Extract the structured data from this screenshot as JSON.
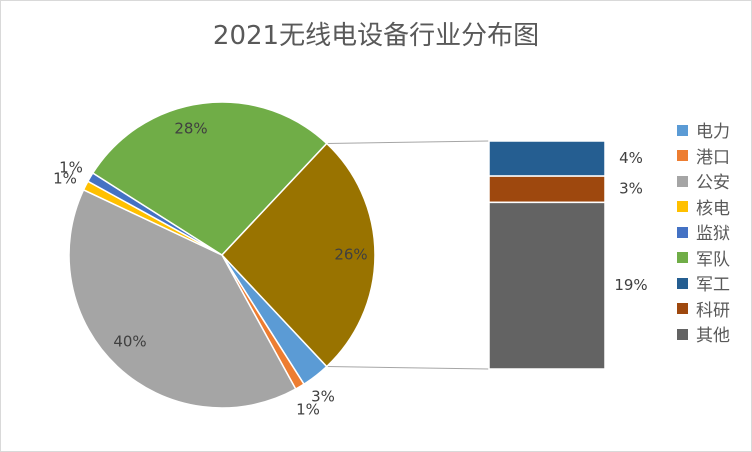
{
  "chart_data": {
    "type": "pie",
    "title": "2021无线电设备行业分布图",
    "slices": [
      {
        "name": "电力",
        "value": 3,
        "label": "3%",
        "color": "#5b9bd5"
      },
      {
        "name": "港口",
        "value": 1,
        "label": "1%",
        "color": "#ed7d31"
      },
      {
        "name": "公安",
        "value": 40,
        "label": "40%",
        "color": "#a5a5a5"
      },
      {
        "name": "核电",
        "value": 1,
        "label": "1%",
        "color": "#ffc000"
      },
      {
        "name": "监狱",
        "value": 1,
        "label": "1%",
        "color": "#4472c4"
      },
      {
        "name": "军队",
        "value": 28,
        "label": "28%",
        "color": "#70ad47"
      },
      {
        "name": "其他",
        "value": 26,
        "label": "26%",
        "color": "#997300"
      }
    ],
    "breakout_bar": [
      {
        "name": "军工",
        "value": 4,
        "label": "4%",
        "color": "#255e91"
      },
      {
        "name": "科研",
        "value": 3,
        "label": "3%",
        "color": "#9e480e"
      },
      {
        "name": "其他",
        "value": 19,
        "label": "19%",
        "color": "#636363"
      }
    ],
    "legend": [
      {
        "name": "电力",
        "color": "#5b9bd5"
      },
      {
        "name": "港口",
        "color": "#ed7d31"
      },
      {
        "name": "公安",
        "color": "#a5a5a5"
      },
      {
        "name": "核电",
        "color": "#ffc000"
      },
      {
        "name": "监狱",
        "color": "#4472c4"
      },
      {
        "name": "军队",
        "color": "#70ad47"
      },
      {
        "name": "军工",
        "color": "#255e91"
      },
      {
        "name": "科研",
        "color": "#9e480e"
      },
      {
        "name": "其他",
        "color": "#636363"
      }
    ],
    "legend_position": "right"
  }
}
